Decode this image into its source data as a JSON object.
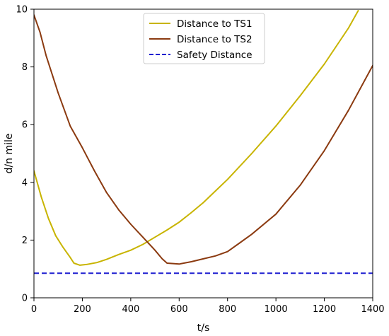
{
  "chart_data": {
    "type": "line",
    "title": "",
    "xlabel": "t/s",
    "ylabel": "d/n mile",
    "xlim": [
      0,
      1400
    ],
    "ylim": [
      0,
      10
    ],
    "xticks": [
      0,
      200,
      400,
      600,
      800,
      1000,
      1200,
      1400
    ],
    "yticks": [
      0,
      2,
      4,
      6,
      8,
      10
    ],
    "grid": false,
    "legend_position": "top-center",
    "series": [
      {
        "name": "Distance to TS1",
        "color": "#c8b400",
        "style": "solid",
        "x": [
          0,
          30,
          60,
          90,
          120,
          150,
          165,
          190,
          220,
          260,
          300,
          350,
          400,
          450,
          500,
          550,
          600,
          650,
          700,
          750,
          800,
          900,
          1000,
          1100,
          1200,
          1300,
          1340
        ],
        "y": [
          4.4,
          3.5,
          2.75,
          2.15,
          1.75,
          1.4,
          1.2,
          1.13,
          1.16,
          1.22,
          1.33,
          1.5,
          1.65,
          1.85,
          2.1,
          2.35,
          2.62,
          2.95,
          3.3,
          3.7,
          4.1,
          5.0,
          5.95,
          7.0,
          8.1,
          9.35,
          9.95
        ]
      },
      {
        "name": "Distance to TS2",
        "color": "#8b3a10",
        "style": "solid",
        "x": [
          0,
          25,
          50,
          100,
          150,
          200,
          250,
          300,
          350,
          400,
          450,
          500,
          530,
          550,
          600,
          650,
          700,
          750,
          800,
          850,
          900,
          1000,
          1100,
          1200,
          1300,
          1400
        ],
        "y": [
          9.8,
          9.2,
          8.4,
          7.1,
          5.95,
          5.2,
          4.4,
          3.65,
          3.05,
          2.55,
          2.1,
          1.65,
          1.35,
          1.2,
          1.17,
          1.25,
          1.35,
          1.45,
          1.6,
          1.9,
          2.2,
          2.9,
          3.9,
          5.1,
          6.5,
          8.05
        ]
      },
      {
        "name": "Safety Distance",
        "color": "#1f1fd0",
        "style": "dashed",
        "x": [
          0,
          1400
        ],
        "y": [
          0.85,
          0.85
        ]
      }
    ]
  }
}
